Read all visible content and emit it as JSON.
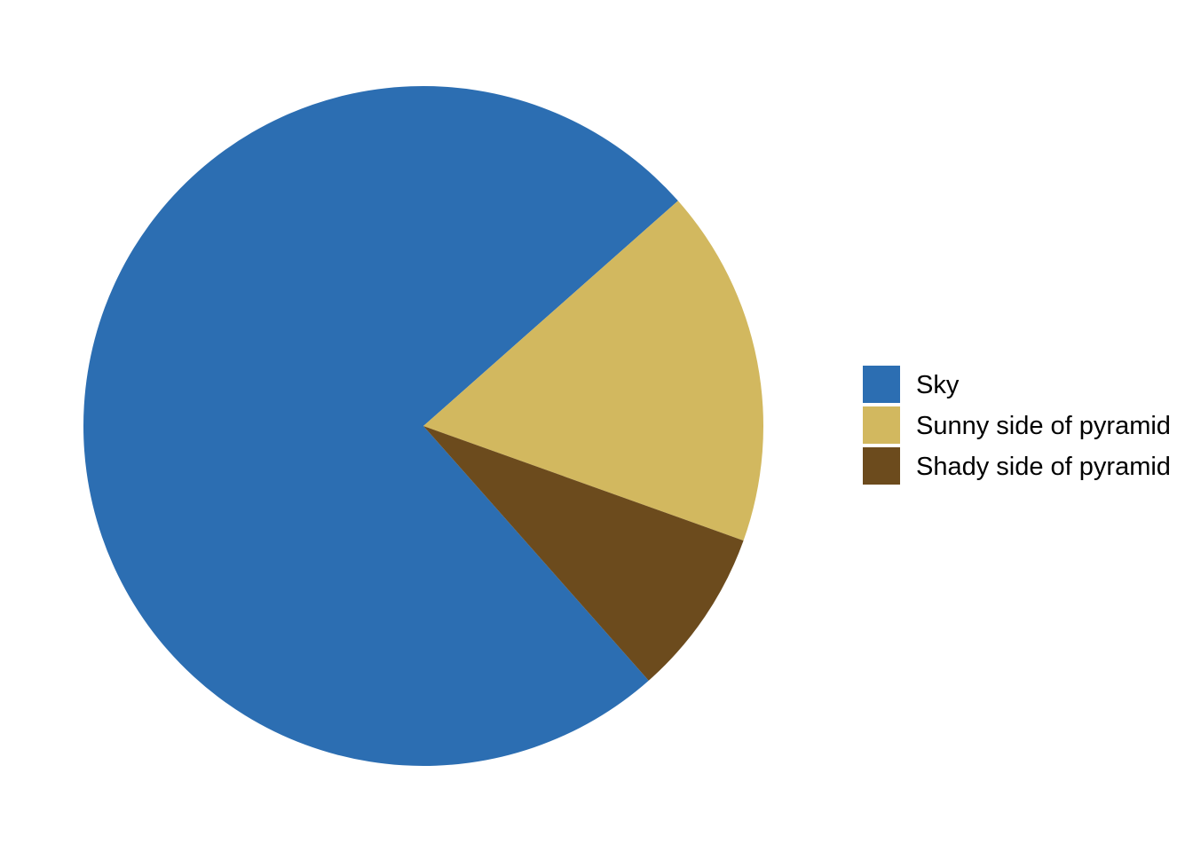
{
  "chart_data": {
    "type": "pie",
    "title": "",
    "slices": [
      {
        "label": "Sky",
        "value": 0.75,
        "color": "#2C6EB2"
      },
      {
        "label": "Sunny side of pyramid",
        "value": 0.17,
        "color": "#D2B85F"
      },
      {
        "label": "Shady side of pyramid",
        "value": 0.08,
        "color": "#6C4B1D"
      }
    ],
    "start_angle_deg_clockwise_from_top": 138.5,
    "direction": "clockwise",
    "legend": {
      "position": "right",
      "entries": [
        "Sky",
        "Sunny side of pyramid",
        "Shady side of pyramid"
      ]
    }
  }
}
